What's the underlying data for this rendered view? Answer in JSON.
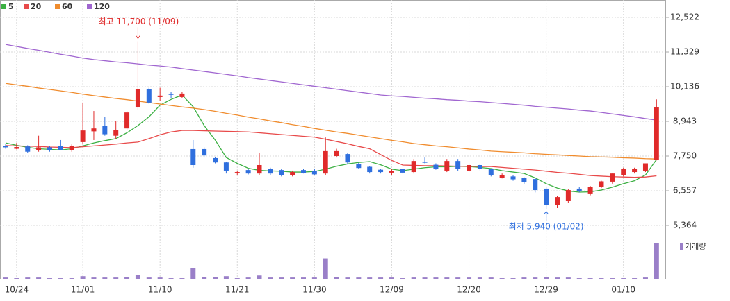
{
  "chart_data": {
    "type": "candlestick",
    "legend": [
      {
        "name": "5",
        "color": "#3cb043"
      },
      {
        "name": "20",
        "color": "#e84a4a"
      },
      {
        "name": "60",
        "color": "#f08c2e"
      },
      {
        "name": "120",
        "color": "#a066d0"
      }
    ],
    "categories": [
      null,
      "10/24",
      null,
      null,
      null,
      null,
      null,
      "11/01",
      null,
      null,
      null,
      null,
      null,
      null,
      "11/10",
      null,
      null,
      null,
      null,
      null,
      null,
      "11/21",
      null,
      null,
      null,
      null,
      null,
      null,
      "11/30",
      null,
      null,
      null,
      null,
      null,
      null,
      "12/09",
      null,
      null,
      null,
      null,
      null,
      null,
      "12/20",
      null,
      null,
      null,
      null,
      null,
      null,
      "12/29",
      null,
      null,
      null,
      null,
      null,
      null,
      "01/10",
      null,
      null,
      null
    ],
    "up_color": "#e02a2a",
    "down_color": "#2f6fde",
    "open": [
      8100,
      8000,
      8080,
      7950,
      8050,
      8100,
      7950,
      8230,
      8600,
      8800,
      8450,
      8700,
      9420,
      10060,
      9780,
      9880,
      9780,
      7990,
      7990,
      7680,
      7530,
      7180,
      7270,
      7150,
      7320,
      7270,
      7100,
      7270,
      7250,
      7150,
      7750,
      7820,
      7480,
      7380,
      7280,
      7180,
      7300,
      7200,
      7550,
      7450,
      7250,
      7580,
      7250,
      7440,
      7300,
      7000,
      7050,
      7000,
      6960,
      6630,
      6060,
      6200,
      6630,
      6440,
      6680,
      6870,
      7100,
      7200,
      7250,
      7630
    ],
    "high": [
      8150,
      8200,
      8120,
      8450,
      8100,
      8300,
      8150,
      9590,
      9300,
      9100,
      8950,
      9300,
      11700,
      10100,
      10100,
      9950,
      9950,
      8300,
      8050,
      7720,
      7560,
      7250,
      7300,
      7870,
      7350,
      7300,
      7250,
      7300,
      7300,
      8390,
      8000,
      7850,
      7520,
      7400,
      7300,
      7300,
      7320,
      7650,
      7700,
      7500,
      7650,
      7650,
      7500,
      7480,
      7320,
      7150,
      7100,
      7020,
      7000,
      6700,
      6380,
      6620,
      6680,
      6720,
      6900,
      7150,
      7350,
      7350,
      7500,
      9700
    ],
    "low": [
      8000,
      7980,
      7850,
      7900,
      7900,
      7950,
      7900,
      8150,
      8300,
      8450,
      8350,
      8650,
      9350,
      9550,
      9650,
      9750,
      9750,
      7350,
      7700,
      7500,
      7150,
      7100,
      7120,
      7100,
      7100,
      7050,
      7050,
      7150,
      7100,
      7100,
      7700,
      7480,
      7300,
      7150,
      7150,
      7100,
      7150,
      7150,
      7500,
      7280,
      7200,
      7250,
      7200,
      7260,
      7050,
      6980,
      6900,
      6800,
      6500,
      5940,
      5960,
      6150,
      6500,
      6400,
      6650,
      6800,
      7050,
      7150,
      7200,
      7600
    ],
    "close": [
      8050,
      8060,
      7900,
      8050,
      7950,
      7950,
      8100,
      8630,
      8700,
      8500,
      8650,
      9250,
      10060,
      9590,
      9830,
      9860,
      9900,
      7440,
      7770,
      7530,
      7250,
      7200,
      7150,
      7440,
      7150,
      7100,
      7200,
      7170,
      7120,
      7920,
      7920,
      7530,
      7340,
      7200,
      7200,
      7230,
      7180,
      7580,
      7520,
      7300,
      7580,
      7300,
      7440,
      7300,
      7100,
      7100,
      6950,
      6850,
      6580,
      6060,
      6340,
      6580,
      6540,
      6680,
      6880,
      7150,
      7300,
      7300,
      7500,
      9420
    ],
    "moving_averages": [
      {
        "name": "5",
        "values": [
          8200,
          8120,
          8050,
          8000,
          7980,
          7960,
          8000,
          8100,
          8200,
          8280,
          8350,
          8550,
          8800,
          9100,
          9500,
          9700,
          9850,
          9450,
          8800,
          8300,
          7700,
          7500,
          7330,
          7260,
          7240,
          7230,
          7200,
          7200,
          7220,
          7300,
          7400,
          7480,
          7530,
          7560,
          7450,
          7300,
          7250,
          7300,
          7350,
          7380,
          7380,
          7400,
          7390,
          7360,
          7320,
          7250,
          7200,
          7150,
          7000,
          6800,
          6650,
          6550,
          6510,
          6520,
          6580,
          6680,
          6800,
          6900,
          7100,
          7630
        ]
      },
      {
        "name": "20",
        "values": [
          8110,
          8100,
          8090,
          8080,
          8060,
          8050,
          8040,
          8070,
          8100,
          8130,
          8160,
          8200,
          8230,
          8350,
          8480,
          8580,
          8630,
          8630,
          8620,
          8610,
          8600,
          8590,
          8580,
          8550,
          8520,
          8490,
          8460,
          8430,
          8400,
          8330,
          8250,
          8170,
          8080,
          8000,
          7800,
          7600,
          7440,
          7430,
          7420,
          7420,
          7410,
          7400,
          7400,
          7390,
          7390,
          7360,
          7330,
          7300,
          7270,
          7230,
          7190,
          7160,
          7120,
          7080,
          7060,
          7040,
          7030,
          7020,
          7030,
          7070
        ]
      },
      {
        "name": "60",
        "values": [
          10250,
          10200,
          10150,
          10090,
          10040,
          9990,
          9940,
          9880,
          9830,
          9780,
          9730,
          9690,
          9640,
          9590,
          9540,
          9490,
          9440,
          9400,
          9350,
          9290,
          9220,
          9160,
          9090,
          9030,
          8960,
          8900,
          8830,
          8770,
          8700,
          8640,
          8580,
          8530,
          8470,
          8410,
          8350,
          8290,
          8240,
          8180,
          8140,
          8100,
          8070,
          8030,
          7990,
          7960,
          7920,
          7900,
          7880,
          7860,
          7830,
          7810,
          7790,
          7770,
          7750,
          7730,
          7720,
          7710,
          7690,
          7680,
          7660,
          7650
        ]
      },
      {
        "name": "120",
        "values": [
          11590,
          11520,
          11450,
          11390,
          11320,
          11250,
          11190,
          11120,
          11070,
          11030,
          10990,
          10960,
          10920,
          10880,
          10850,
          10810,
          10760,
          10710,
          10660,
          10610,
          10560,
          10510,
          10450,
          10400,
          10350,
          10300,
          10250,
          10200,
          10150,
          10100,
          10050,
          10000,
          9950,
          9900,
          9850,
          9820,
          9800,
          9770,
          9740,
          9720,
          9690,
          9670,
          9640,
          9620,
          9590,
          9560,
          9530,
          9500,
          9460,
          9430,
          9400,
          9370,
          9330,
          9300,
          9250,
          9200,
          9150,
          9100,
          9040,
          8990
        ]
      }
    ],
    "ylim": [
      5054,
      13119
    ],
    "yticks": [
      {
        "value": 12522,
        "label": "12,522"
      },
      {
        "value": 11329,
        "label": "11,329"
      },
      {
        "value": 10136,
        "label": "10,136"
      },
      {
        "value": 8943,
        "label": "8,943"
      },
      {
        "value": 7750,
        "label": "7,750"
      },
      {
        "value": 6557,
        "label": "6,557"
      },
      {
        "value": 5364,
        "label": "5,364"
      }
    ],
    "grid": true,
    "volume": {
      "name": "거래량",
      "color": "#9a7fc8",
      "ylim": [
        0,
        60
      ],
      "values": [
        2,
        1,
        2,
        2,
        1,
        1,
        1,
        4,
        2,
        2,
        2,
        3,
        6,
        2,
        2,
        1,
        1,
        16,
        3,
        3,
        4,
        1,
        2,
        5,
        2,
        2,
        2,
        2,
        2,
        31,
        3,
        2,
        2,
        2,
        2,
        2,
        1,
        2,
        2,
        2,
        2,
        2,
        2,
        2,
        2,
        1,
        1,
        2,
        2,
        3,
        2,
        2,
        1,
        1,
        1,
        1,
        1,
        1,
        2,
        54
      ]
    },
    "annotations": [
      {
        "text": "최고 11,700 (11/09)",
        "index": 12,
        "value": 11700,
        "color": "#e02a2a"
      },
      {
        "text": "최저 5,940 (01/02)",
        "index": 49,
        "value": 5940,
        "color": "#2f6fde"
      }
    ]
  }
}
